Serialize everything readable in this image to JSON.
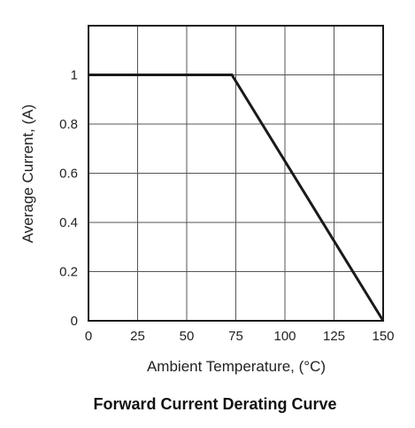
{
  "chart_data": {
    "type": "line",
    "title": "Forward Current Derating Curve",
    "xlabel": "Ambient Temperature, (°C)",
    "ylabel": "Average Current, (A)",
    "xlim": [
      0,
      150
    ],
    "ylim": [
      0,
      1.2
    ],
    "x_ticks": [
      0,
      25,
      50,
      75,
      100,
      125,
      150
    ],
    "x_tick_labels": [
      "0",
      "25",
      "50",
      "75",
      "100",
      "125",
      "150"
    ],
    "y_ticks": [
      0,
      0.2,
      0.4,
      0.6,
      0.8,
      1
    ],
    "y_tick_labels": [
      "0",
      "0.2",
      "0.4",
      "0.6",
      "0.8",
      "1"
    ],
    "grid": true,
    "series": [
      {
        "x": [
          0,
          73,
          150
        ],
        "y": [
          1,
          1,
          0
        ]
      }
    ],
    "colors": {
      "line": "#1a1a1a",
      "grid": "#555555",
      "frame": "#1a1a1a"
    }
  }
}
